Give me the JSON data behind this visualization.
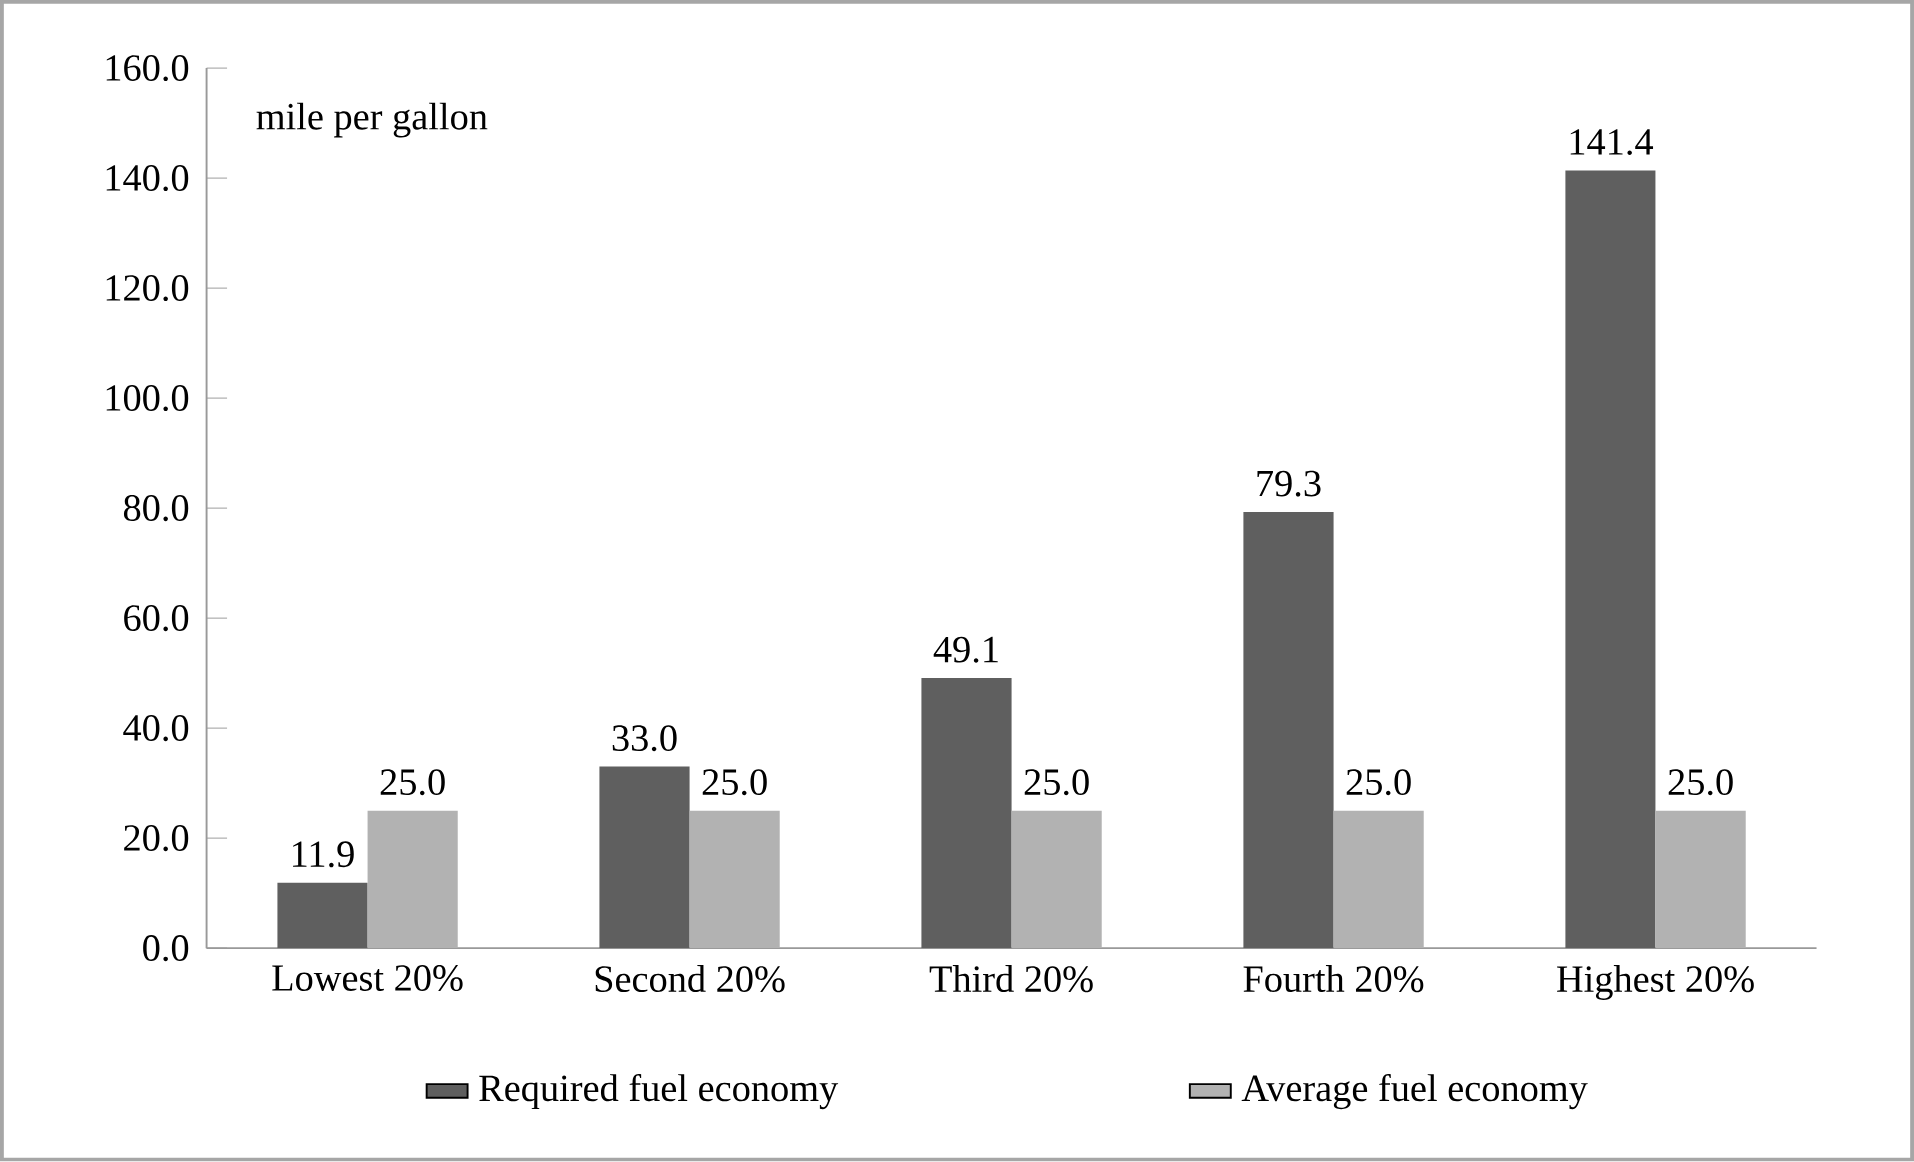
{
  "chart_data": {
    "type": "bar",
    "categories": [
      "Lowest 20%",
      "Second 20%",
      "Third 20%",
      "Fourth 20%",
      "Highest 20%"
    ],
    "series": [
      {
        "name": "Required fuel economy",
        "color": "#5f5f5f",
        "values": [
          11.9,
          33.0,
          49.1,
          79.3,
          141.4
        ],
        "value_labels": [
          "11.9",
          "33.0",
          "49.1",
          "79.3",
          "141.4"
        ]
      },
      {
        "name": "Average fuel economy",
        "color": "#b2b2b2",
        "values": [
          25.0,
          25.0,
          25.0,
          25.0,
          25.0
        ],
        "value_labels": [
          "25.0",
          "25.0",
          "25.0",
          "25.0",
          "25.0"
        ]
      }
    ],
    "ylim": [
      0,
      160
    ],
    "yticks": [
      {
        "value": 0,
        "label": "0.0"
      },
      {
        "value": 20,
        "label": "20.0"
      },
      {
        "value": 40,
        "label": "40.0"
      },
      {
        "value": 60,
        "label": "60.0"
      },
      {
        "value": 80,
        "label": "80.0"
      },
      {
        "value": 100,
        "label": "100.0"
      },
      {
        "value": 120,
        "label": "120.0"
      },
      {
        "value": 140,
        "label": "140.0"
      },
      {
        "value": 160,
        "label": "160.0"
      }
    ],
    "annotations": [
      "mile per gallon"
    ],
    "legend": "bottom",
    "grid": false
  }
}
